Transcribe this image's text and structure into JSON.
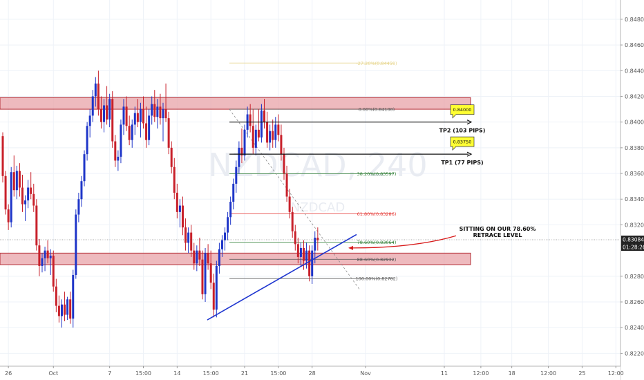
{
  "chart_data": {
    "type": "candlestick",
    "symbol_watermark": "NZDCAD, 240",
    "symbol_sub_watermark": "NZDCAD",
    "colors": {
      "up": "#1e35c8",
      "down": "#c8202a",
      "zone_fill": "#e8a3a8",
      "zone_border": "#b22a32",
      "trendline": "#1f36d0",
      "fib_green": "#2e7d32",
      "fib_red": "#e53935",
      "fib_gray": "#555555",
      "fib_yellow": "#e6d48a",
      "label_yellow": "#ffff33",
      "arrow_red": "#d81b1b",
      "grid": "#eef2f8",
      "price_tag_bg": "#222222"
    },
    "y_range": [
      0.821,
      0.8495
    ],
    "price_ticks": [
      "0.84800",
      "0.84600",
      "0.84400",
      "0.84200",
      "0.84000",
      "0.83800",
      "0.83600",
      "0.83400",
      "0.83200",
      "0.82800",
      "0.82600",
      "0.82400",
      "0.82200"
    ],
    "time_ticks": [
      {
        "label": "26",
        "bar": 2
      },
      {
        "label": "Oct",
        "bar": 18
      },
      {
        "label": "7",
        "bar": 38
      },
      {
        "label": "15:00",
        "bar": 50
      },
      {
        "label": "14",
        "bar": 62
      },
      {
        "label": "15:00",
        "bar": 74
      },
      {
        "label": "21",
        "bar": 86
      },
      {
        "label": "15:00",
        "bar": 98
      },
      {
        "label": "28",
        "bar": 110
      },
      {
        "label": "Nov",
        "bar": 129
      },
      {
        "label": "11",
        "bar": 157
      },
      {
        "label": "12:00",
        "bar": 170
      },
      {
        "label": "18",
        "bar": 181
      },
      {
        "label": "12:00",
        "bar": 194
      },
      {
        "label": "25",
        "bar": 206
      },
      {
        "label": "12:00",
        "bar": 218
      }
    ],
    "candles": [
      {
        "o": 0.8389,
        "h": 0.8392,
        "l": 0.8353,
        "c": 0.8358
      },
      {
        "o": 0.8358,
        "h": 0.8362,
        "l": 0.8328,
        "c": 0.8332
      },
      {
        "o": 0.8332,
        "h": 0.8336,
        "l": 0.8316,
        "c": 0.8322
      },
      {
        "o": 0.8322,
        "h": 0.8365,
        "l": 0.8318,
        "c": 0.8361
      },
      {
        "o": 0.8361,
        "h": 0.8374,
        "l": 0.8342,
        "c": 0.8347
      },
      {
        "o": 0.8347,
        "h": 0.8366,
        "l": 0.834,
        "c": 0.8362
      },
      {
        "o": 0.8362,
        "h": 0.8368,
        "l": 0.8342,
        "c": 0.8349
      },
      {
        "o": 0.8349,
        "h": 0.8359,
        "l": 0.833,
        "c": 0.8336
      },
      {
        "o": 0.8336,
        "h": 0.8343,
        "l": 0.8323,
        "c": 0.8339
      },
      {
        "o": 0.8339,
        "h": 0.8355,
        "l": 0.8333,
        "c": 0.8349
      },
      {
        "o": 0.8349,
        "h": 0.8361,
        "l": 0.834,
        "c": 0.8344
      },
      {
        "o": 0.8344,
        "h": 0.8352,
        "l": 0.833,
        "c": 0.8335
      },
      {
        "o": 0.8335,
        "h": 0.834,
        "l": 0.83,
        "c": 0.8304
      },
      {
        "o": 0.8304,
        "h": 0.8309,
        "l": 0.828,
        "c": 0.8288
      },
      {
        "o": 0.8288,
        "h": 0.8298,
        "l": 0.8283,
        "c": 0.8294
      },
      {
        "o": 0.8294,
        "h": 0.8303,
        "l": 0.8284,
        "c": 0.83
      },
      {
        "o": 0.83,
        "h": 0.8308,
        "l": 0.829,
        "c": 0.8294
      },
      {
        "o": 0.8294,
        "h": 0.8301,
        "l": 0.8281,
        "c": 0.8296
      },
      {
        "o": 0.8296,
        "h": 0.83,
        "l": 0.8268,
        "c": 0.8272
      },
      {
        "o": 0.8272,
        "h": 0.8278,
        "l": 0.8252,
        "c": 0.8257
      },
      {
        "o": 0.8257,
        "h": 0.8265,
        "l": 0.8244,
        "c": 0.8249
      },
      {
        "o": 0.8249,
        "h": 0.8262,
        "l": 0.824,
        "c": 0.8258
      },
      {
        "o": 0.8258,
        "h": 0.8268,
        "l": 0.8245,
        "c": 0.825
      },
      {
        "o": 0.825,
        "h": 0.8264,
        "l": 0.8246,
        "c": 0.8262
      },
      {
        "o": 0.8262,
        "h": 0.8268,
        "l": 0.8243,
        "c": 0.8247
      },
      {
        "o": 0.8247,
        "h": 0.8285,
        "l": 0.824,
        "c": 0.8281
      },
      {
        "o": 0.8281,
        "h": 0.8332,
        "l": 0.8278,
        "c": 0.8328
      },
      {
        "o": 0.8328,
        "h": 0.8345,
        "l": 0.8322,
        "c": 0.834
      },
      {
        "o": 0.834,
        "h": 0.8358,
        "l": 0.8334,
        "c": 0.8354
      },
      {
        "o": 0.8354,
        "h": 0.8378,
        "l": 0.835,
        "c": 0.8375
      },
      {
        "o": 0.8375,
        "h": 0.84,
        "l": 0.837,
        "c": 0.8397
      },
      {
        "o": 0.8397,
        "h": 0.841,
        "l": 0.8388,
        "c": 0.8405
      },
      {
        "o": 0.8405,
        "h": 0.8425,
        "l": 0.84,
        "c": 0.842
      },
      {
        "o": 0.842,
        "h": 0.8435,
        "l": 0.8412,
        "c": 0.843
      },
      {
        "o": 0.843,
        "h": 0.844,
        "l": 0.8405,
        "c": 0.841
      },
      {
        "o": 0.841,
        "h": 0.842,
        "l": 0.8395,
        "c": 0.84
      },
      {
        "o": 0.84,
        "h": 0.8418,
        "l": 0.8392,
        "c": 0.8413
      },
      {
        "o": 0.8413,
        "h": 0.8428,
        "l": 0.8398,
        "c": 0.8402
      },
      {
        "o": 0.8402,
        "h": 0.8422,
        "l": 0.8396,
        "c": 0.8418
      },
      {
        "o": 0.8418,
        "h": 0.8424,
        "l": 0.838,
        "c": 0.8385
      },
      {
        "o": 0.8385,
        "h": 0.839,
        "l": 0.8365,
        "c": 0.837
      },
      {
        "o": 0.837,
        "h": 0.8378,
        "l": 0.8362,
        "c": 0.8373
      },
      {
        "o": 0.8373,
        "h": 0.8402,
        "l": 0.8368,
        "c": 0.8398
      },
      {
        "o": 0.8398,
        "h": 0.8418,
        "l": 0.839,
        "c": 0.8412
      },
      {
        "o": 0.8412,
        "h": 0.842,
        "l": 0.8393,
        "c": 0.8397
      },
      {
        "o": 0.8397,
        "h": 0.8405,
        "l": 0.8382,
        "c": 0.8386
      },
      {
        "o": 0.8386,
        "h": 0.8402,
        "l": 0.838,
        "c": 0.8398
      },
      {
        "o": 0.8398,
        "h": 0.8412,
        "l": 0.839,
        "c": 0.8407
      },
      {
        "o": 0.8407,
        "h": 0.8418,
        "l": 0.8396,
        "c": 0.84
      },
      {
        "o": 0.84,
        "h": 0.8415,
        "l": 0.8388,
        "c": 0.841
      },
      {
        "o": 0.841,
        "h": 0.842,
        "l": 0.8395,
        "c": 0.8399
      },
      {
        "o": 0.8399,
        "h": 0.8412,
        "l": 0.838,
        "c": 0.8386
      },
      {
        "o": 0.8386,
        "h": 0.841,
        "l": 0.8382,
        "c": 0.8405
      },
      {
        "o": 0.8405,
        "h": 0.842,
        "l": 0.8398,
        "c": 0.8414
      },
      {
        "o": 0.8414,
        "h": 0.8425,
        "l": 0.84,
        "c": 0.8404
      },
      {
        "o": 0.8404,
        "h": 0.8418,
        "l": 0.8395,
        "c": 0.8412
      },
      {
        "o": 0.8412,
        "h": 0.8422,
        "l": 0.8398,
        "c": 0.8403
      },
      {
        "o": 0.8403,
        "h": 0.8415,
        "l": 0.8385,
        "c": 0.841
      },
      {
        "o": 0.841,
        "h": 0.843,
        "l": 0.84,
        "c": 0.8403
      },
      {
        "o": 0.8403,
        "h": 0.8408,
        "l": 0.8375,
        "c": 0.838
      },
      {
        "o": 0.838,
        "h": 0.8385,
        "l": 0.836,
        "c": 0.8365
      },
      {
        "o": 0.8365,
        "h": 0.8372,
        "l": 0.834,
        "c": 0.8345
      },
      {
        "o": 0.8345,
        "h": 0.8352,
        "l": 0.8325,
        "c": 0.833
      },
      {
        "o": 0.833,
        "h": 0.834,
        "l": 0.8318,
        "c": 0.8335
      },
      {
        "o": 0.8335,
        "h": 0.8342,
        "l": 0.8312,
        "c": 0.8318
      },
      {
        "o": 0.8318,
        "h": 0.8325,
        "l": 0.83,
        "c": 0.8306
      },
      {
        "o": 0.8306,
        "h": 0.8318,
        "l": 0.8298,
        "c": 0.8314
      },
      {
        "o": 0.8314,
        "h": 0.832,
        "l": 0.8295,
        "c": 0.83
      },
      {
        "o": 0.83,
        "h": 0.8306,
        "l": 0.8285,
        "c": 0.829
      },
      {
        "o": 0.829,
        "h": 0.8304,
        "l": 0.8284,
        "c": 0.83
      },
      {
        "o": 0.83,
        "h": 0.831,
        "l": 0.8288,
        "c": 0.8293
      },
      {
        "o": 0.8293,
        "h": 0.83,
        "l": 0.8262,
        "c": 0.8266
      },
      {
        "o": 0.8266,
        "h": 0.8302,
        "l": 0.826,
        "c": 0.8298
      },
      {
        "o": 0.8298,
        "h": 0.8305,
        "l": 0.8285,
        "c": 0.829
      },
      {
        "o": 0.829,
        "h": 0.83,
        "l": 0.827,
        "c": 0.8275
      },
      {
        "o": 0.8275,
        "h": 0.8282,
        "l": 0.8248,
        "c": 0.8254
      },
      {
        "o": 0.8254,
        "h": 0.8292,
        "l": 0.8248,
        "c": 0.8288
      },
      {
        "o": 0.8288,
        "h": 0.8306,
        "l": 0.8282,
        "c": 0.8301
      },
      {
        "o": 0.8301,
        "h": 0.8312,
        "l": 0.8295,
        "c": 0.8308
      },
      {
        "o": 0.8308,
        "h": 0.8318,
        "l": 0.83,
        "c": 0.8314
      },
      {
        "o": 0.8314,
        "h": 0.833,
        "l": 0.8308,
        "c": 0.8326
      },
      {
        "o": 0.8326,
        "h": 0.8342,
        "l": 0.832,
        "c": 0.8338
      },
      {
        "o": 0.8338,
        "h": 0.8356,
        "l": 0.8332,
        "c": 0.8352
      },
      {
        "o": 0.8352,
        "h": 0.837,
        "l": 0.8345,
        "c": 0.8365
      },
      {
        "o": 0.8365,
        "h": 0.8385,
        "l": 0.836,
        "c": 0.838
      },
      {
        "o": 0.838,
        "h": 0.8395,
        "l": 0.8368,
        "c": 0.8374
      },
      {
        "o": 0.8374,
        "h": 0.8398,
        "l": 0.837,
        "c": 0.8394
      },
      {
        "o": 0.8394,
        "h": 0.8412,
        "l": 0.8388,
        "c": 0.8406
      },
      {
        "o": 0.8406,
        "h": 0.8414,
        "l": 0.8392,
        "c": 0.8397
      },
      {
        "o": 0.8397,
        "h": 0.841,
        "l": 0.8375,
        "c": 0.838
      },
      {
        "o": 0.838,
        "h": 0.8398,
        "l": 0.8374,
        "c": 0.8394
      },
      {
        "o": 0.8394,
        "h": 0.841,
        "l": 0.8385,
        "c": 0.8388
      },
      {
        "o": 0.8388,
        "h": 0.8414,
        "l": 0.8384,
        "c": 0.8409
      },
      {
        "o": 0.8409,
        "h": 0.8418,
        "l": 0.8395,
        "c": 0.84
      },
      {
        "o": 0.84,
        "h": 0.8408,
        "l": 0.838,
        "c": 0.8384
      },
      {
        "o": 0.8384,
        "h": 0.8398,
        "l": 0.8378,
        "c": 0.8393
      },
      {
        "o": 0.8393,
        "h": 0.8402,
        "l": 0.838,
        "c": 0.8386
      },
      {
        "o": 0.8386,
        "h": 0.8404,
        "l": 0.838,
        "c": 0.8398
      },
      {
        "o": 0.8398,
        "h": 0.8406,
        "l": 0.8385,
        "c": 0.839
      },
      {
        "o": 0.839,
        "h": 0.8398,
        "l": 0.837,
        "c": 0.8375
      },
      {
        "o": 0.8375,
        "h": 0.838,
        "l": 0.8355,
        "c": 0.836
      },
      {
        "o": 0.836,
        "h": 0.8366,
        "l": 0.8338,
        "c": 0.8342
      },
      {
        "o": 0.8342,
        "h": 0.8348,
        "l": 0.8325,
        "c": 0.833
      },
      {
        "o": 0.833,
        "h": 0.8334,
        "l": 0.831,
        "c": 0.8315
      },
      {
        "o": 0.8315,
        "h": 0.832,
        "l": 0.83,
        "c": 0.8305
      },
      {
        "o": 0.8305,
        "h": 0.831,
        "l": 0.829,
        "c": 0.8295
      },
      {
        "o": 0.8295,
        "h": 0.8306,
        "l": 0.8288,
        "c": 0.8302
      },
      {
        "o": 0.8302,
        "h": 0.8308,
        "l": 0.8285,
        "c": 0.8292
      },
      {
        "o": 0.8292,
        "h": 0.8306,
        "l": 0.8286,
        "c": 0.83
      },
      {
        "o": 0.83,
        "h": 0.8304,
        "l": 0.8276,
        "c": 0.828
      },
      {
        "o": 0.828,
        "h": 0.8304,
        "l": 0.8274,
        "c": 0.83
      },
      {
        "o": 0.83,
        "h": 0.8315,
        "l": 0.829,
        "c": 0.831
      },
      {
        "o": 0.831,
        "h": 0.8318,
        "l": 0.83,
        "c": 0.8308
      }
    ],
    "zones": [
      {
        "name": "resistance-zone",
        "top": 0.8419,
        "bottom": 0.841
      },
      {
        "name": "support-zone",
        "top": 0.8298,
        "bottom": 0.8289
      }
    ],
    "fib_levels": [
      {
        "label": "0.00%(0.84100)",
        "price": 0.841,
        "color": "gray"
      },
      {
        "label": "38.20%(0.83597)",
        "price": 0.83597,
        "color": "green"
      },
      {
        "label": "61.80%(0.83286)",
        "price": 0.83286,
        "color": "red"
      },
      {
        "label": "78.60%(0.83064)",
        "price": 0.83064,
        "color": "green"
      },
      {
        "label": "88.60%(0.82932)",
        "price": 0.82932,
        "color": "gray"
      },
      {
        "label": "100.00%(0.82782)",
        "price": 0.82782,
        "color": "gray"
      },
      {
        "label": "-27.20%(0.84459)",
        "price": 0.84459,
        "color": "yellow"
      }
    ],
    "targets": [
      {
        "name": "tp2",
        "price": 0.84,
        "tag": "0.84000",
        "label": "TP2 (103 PIPS)"
      },
      {
        "name": "tp1",
        "price": 0.8375,
        "tag": "0.83750",
        "label": "TP1 (77 PIPS)"
      }
    ],
    "annotation": {
      "line1": "SITTING ON OUR 78.60%",
      "line2": "RETRACE LEVEL"
    },
    "current_price": {
      "price": 0.83084,
      "tag": "0.83084",
      "countdown": "01:28:26"
    }
  }
}
